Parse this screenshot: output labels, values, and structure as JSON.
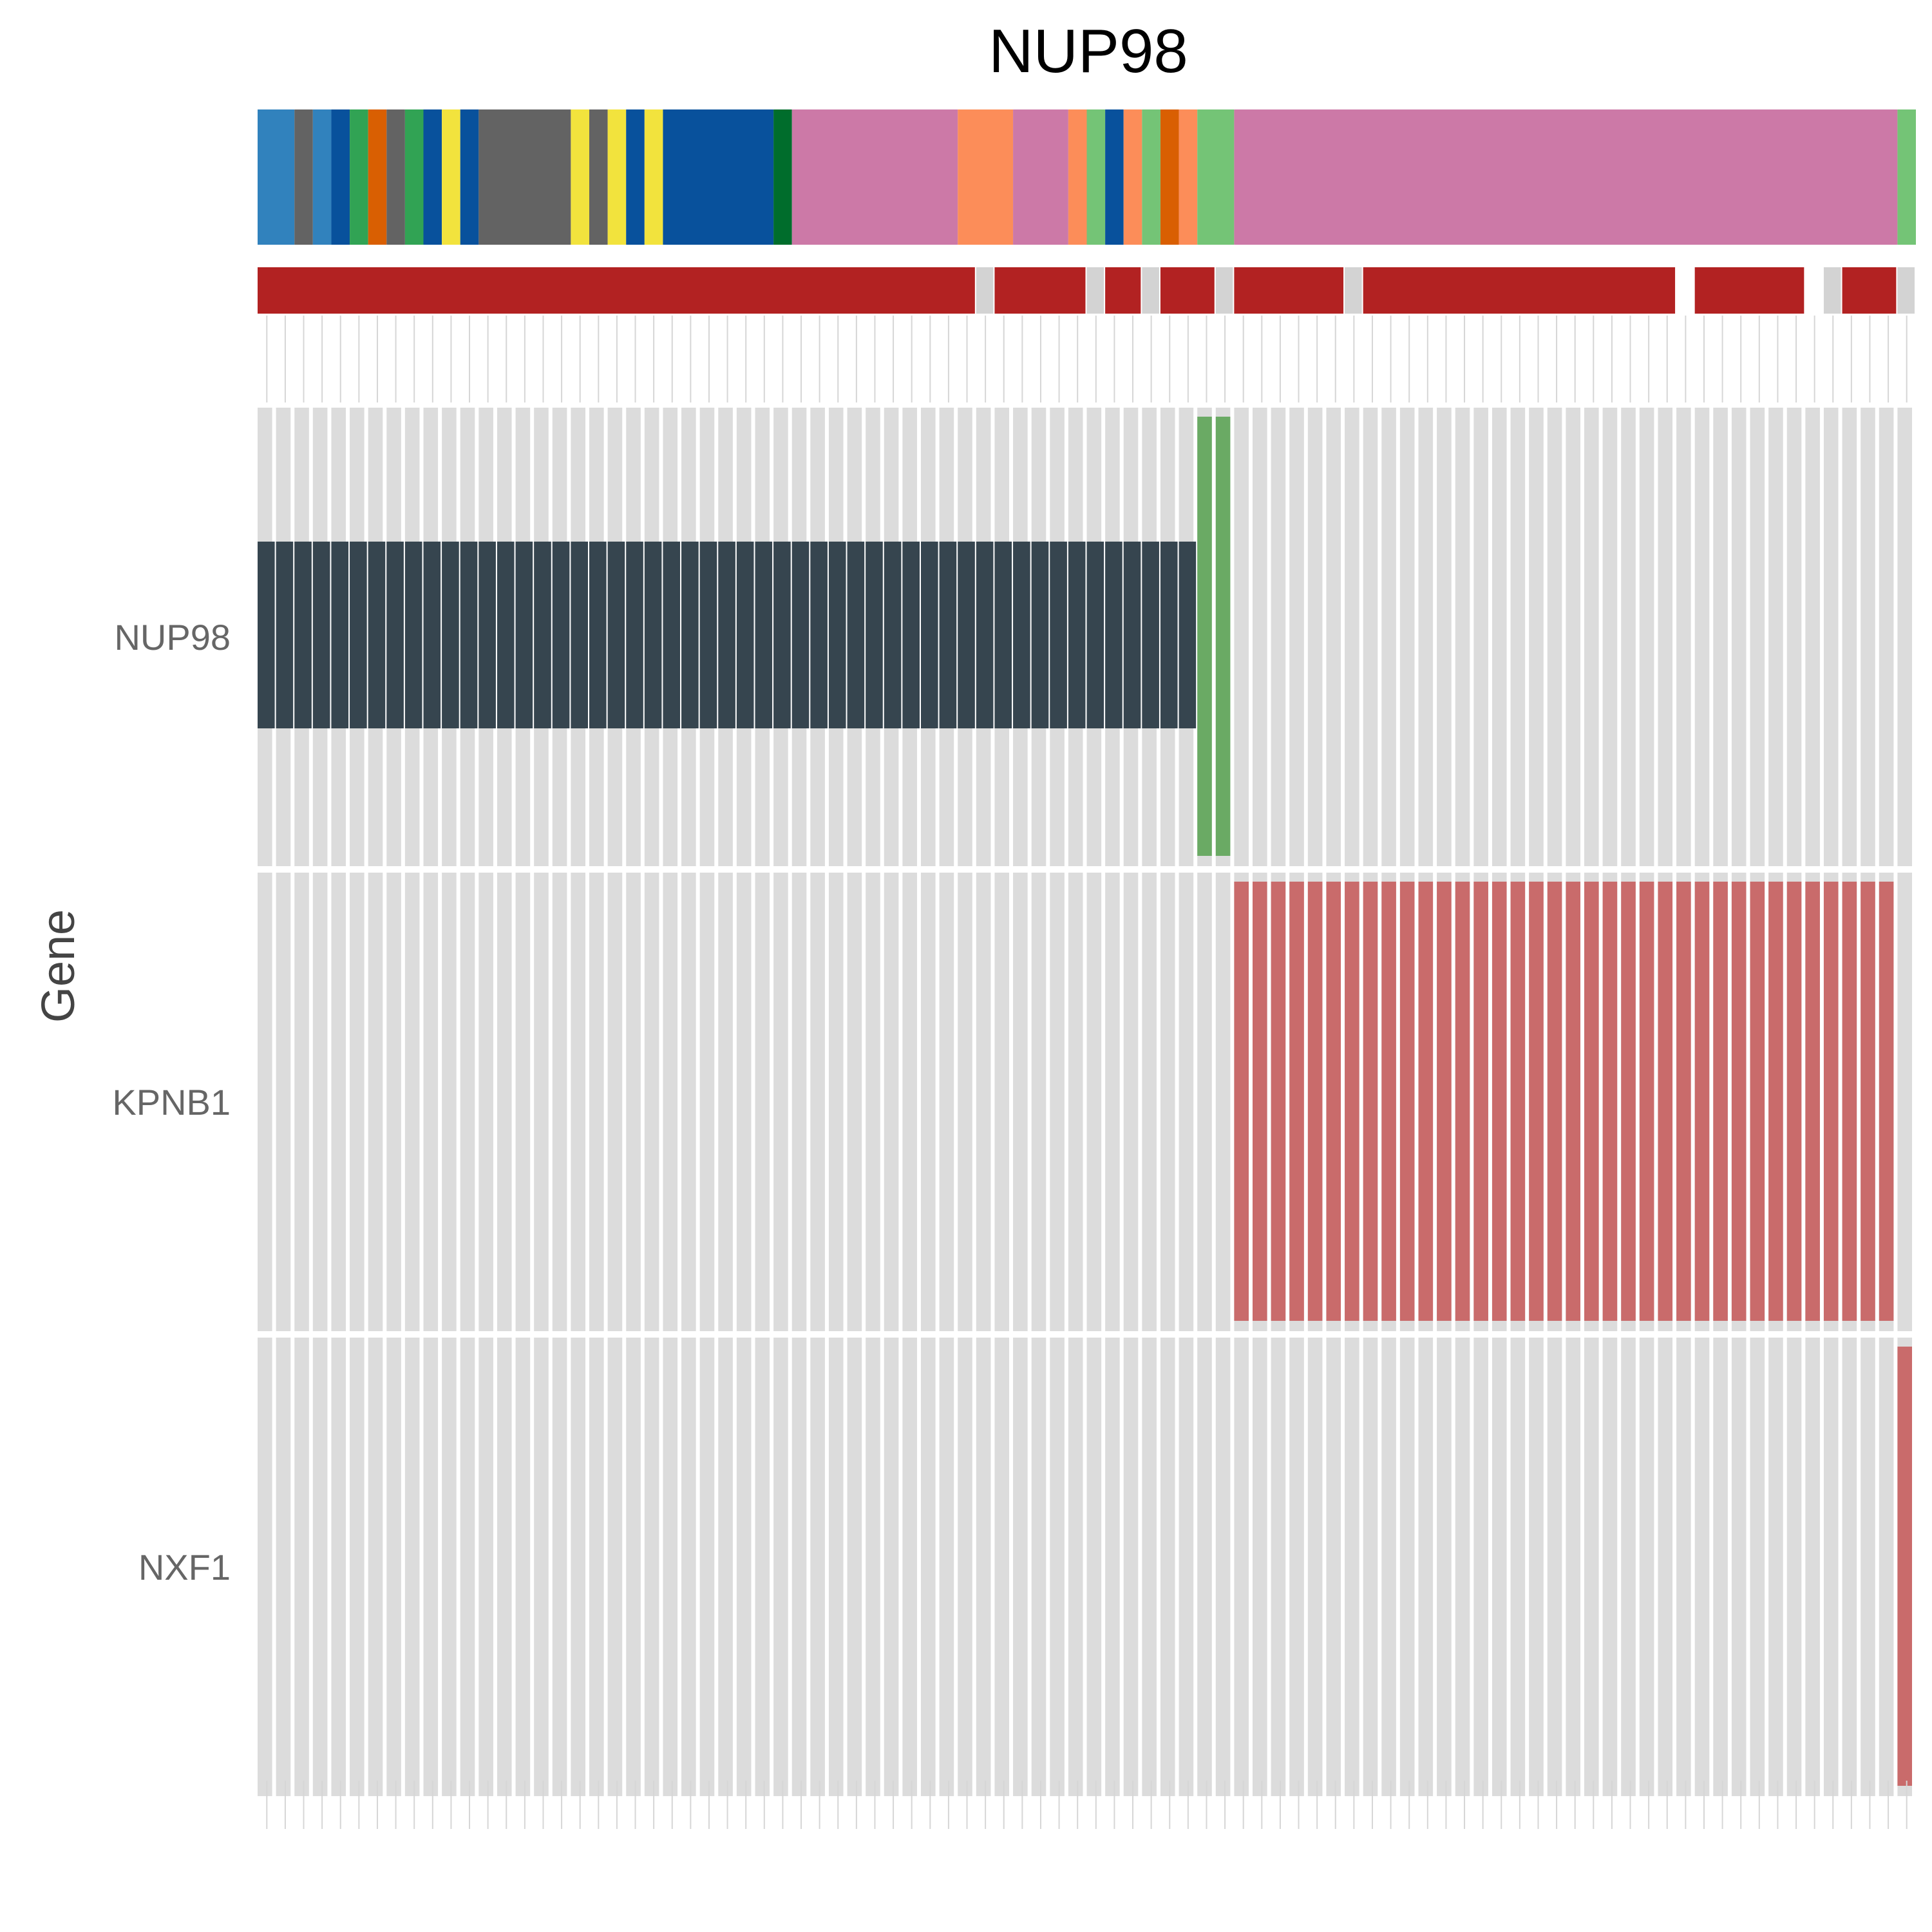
{
  "chart_data": {
    "type": "heatmap",
    "title": "NUP98",
    "ylabel": "Gene",
    "xlabel": "",
    "n_samples": 90,
    "rows": [
      "NUP98",
      "KPNB1",
      "NXF1"
    ],
    "colors": {
      "background": "#dcdcdc",
      "gap_gray": "#d3d3d3",
      "bar_red": "#b22222",
      "dark": "#36454f",
      "green": "#6aaa64",
      "light_red": "#c96b6b",
      "tick": "#d6d6d6"
    },
    "cells": [
      {
        "row": "NUP98",
        "from": 1,
        "to": 51,
        "color": "#36454f",
        "band": "middle"
      },
      {
        "row": "NUP98",
        "from": 52,
        "to": 53,
        "color": "#6aaa64",
        "band": "full"
      },
      {
        "row": "KPNB1",
        "from": 54,
        "to": 89,
        "color": "#c96b6b",
        "band": "full"
      },
      {
        "row": "NXF1",
        "from": 90,
        "to": 90,
        "color": "#c96b6b",
        "band": "full"
      }
    ],
    "top_annotation": [
      {
        "from": 1,
        "to": 2,
        "color": "#3182bd"
      },
      {
        "from": 3,
        "to": 3,
        "color": "#636363"
      },
      {
        "from": 4,
        "to": 4,
        "color": "#3182bd"
      },
      {
        "from": 5,
        "to": 5,
        "color": "#08519c"
      },
      {
        "from": 6,
        "to": 6,
        "color": "#31a354"
      },
      {
        "from": 7,
        "to": 7,
        "color": "#d95f02"
      },
      {
        "from": 8,
        "to": 8,
        "color": "#636363"
      },
      {
        "from": 9,
        "to": 9,
        "color": "#31a354"
      },
      {
        "from": 10,
        "to": 10,
        "color": "#08519c"
      },
      {
        "from": 11,
        "to": 11,
        "color": "#f2e33d"
      },
      {
        "from": 12,
        "to": 12,
        "color": "#08519c"
      },
      {
        "from": 13,
        "to": 17,
        "color": "#636363"
      },
      {
        "from": 18,
        "to": 18,
        "color": "#f2e33d"
      },
      {
        "from": 19,
        "to": 19,
        "color": "#636363"
      },
      {
        "from": 20,
        "to": 20,
        "color": "#f2e33d"
      },
      {
        "from": 21,
        "to": 21,
        "color": "#08519c"
      },
      {
        "from": 22,
        "to": 22,
        "color": "#f2e33d"
      },
      {
        "from": 23,
        "to": 28,
        "color": "#08519c"
      },
      {
        "from": 29,
        "to": 29,
        "color": "#006d2c"
      },
      {
        "from": 30,
        "to": 38,
        "color": "#cc79a7"
      },
      {
        "from": 39,
        "to": 41,
        "color": "#fc8d59"
      },
      {
        "from": 42,
        "to": 44,
        "color": "#cc79a7"
      },
      {
        "from": 45,
        "to": 45,
        "color": "#fc8d59"
      },
      {
        "from": 46,
        "to": 46,
        "color": "#74c476"
      },
      {
        "from": 47,
        "to": 47,
        "color": "#08519c"
      },
      {
        "from": 48,
        "to": 48,
        "color": "#fc8d59"
      },
      {
        "from": 49,
        "to": 49,
        "color": "#74c476"
      },
      {
        "from": 50,
        "to": 50,
        "color": "#d95f02"
      },
      {
        "from": 51,
        "to": 51,
        "color": "#fc8d59"
      },
      {
        "from": 52,
        "to": 53,
        "color": "#74c476"
      },
      {
        "from": 54,
        "to": 89,
        "color": "#cc79a7"
      },
      {
        "from": 90,
        "to": 90,
        "color": "#74c476"
      }
    ],
    "second_annotation": [
      {
        "from": 1,
        "to": 39,
        "color": "#b22222"
      },
      {
        "from": 40,
        "to": 40,
        "color": "#d3d3d3"
      },
      {
        "from": 41,
        "to": 45,
        "color": "#b22222"
      },
      {
        "from": 46,
        "to": 46,
        "color": "#d3d3d3"
      },
      {
        "from": 47,
        "to": 48,
        "color": "#b22222"
      },
      {
        "from": 49,
        "to": 49,
        "color": "#d3d3d3"
      },
      {
        "from": 50,
        "to": 52,
        "color": "#b22222"
      },
      {
        "from": 53,
        "to": 53,
        "color": "#d3d3d3"
      },
      {
        "from": 54,
        "to": 59,
        "color": "#b22222"
      },
      {
        "from": 60,
        "to": 60,
        "color": "#d3d3d3"
      },
      {
        "from": 61,
        "to": 77,
        "color": "#b22222"
      },
      {
        "from": 79,
        "to": 84,
        "color": "#b22222"
      },
      {
        "from": 86,
        "to": 86,
        "color": "#d3d3d3"
      },
      {
        "from": 87,
        "to": 89,
        "color": "#b22222"
      },
      {
        "from": 90,
        "to": 90,
        "color": "#d3d3d3"
      }
    ]
  }
}
